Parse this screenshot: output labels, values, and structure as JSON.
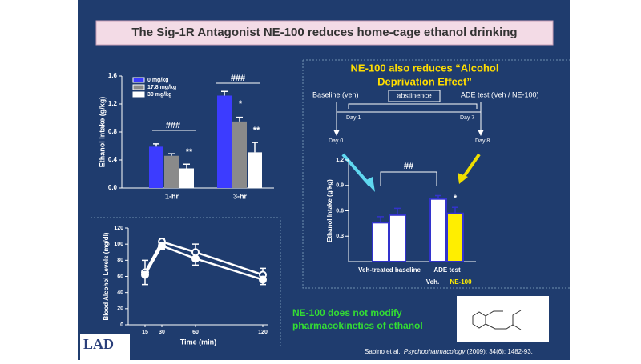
{
  "slide": {
    "title": "The Sig-1R Antagonist NE-100 reduces home-cage ethanol drinking",
    "ade_heading": [
      "NE-100 also reduces “Alcohol",
      "Deprivation Effect”"
    ],
    "timeline": {
      "baseline": "Baseline (veh)",
      "abstinence": "abstinence",
      "ade": "ADE test (Veh / NE-100)",
      "day1": "Day 1",
      "day7": "Day 7",
      "day0": "Day 0",
      "day8": "Day 8"
    },
    "pk_note": [
      "NE-100 does not modify",
      "pharmacokinetics of ethanol"
    ],
    "citation": {
      "authors": "Sabino et al., ",
      "journal": "Psychopharmacology",
      "details": " (2009); 34(6): 1482-93."
    },
    "logo": "LAD"
  },
  "chart_data": [
    {
      "type": "bar",
      "ylabel": "Ethanol Intake (g/kg)",
      "categories": [
        "1-hr",
        "3-hr"
      ],
      "series": [
        {
          "name": "0 mg/kg",
          "color": "#3c3cff",
          "values": [
            0.59,
            1.32
          ],
          "errors": [
            0.04,
            0.06
          ]
        },
        {
          "name": "17.8 mg/kg",
          "color": "#8a8a8a",
          "values": [
            0.46,
            0.95
          ],
          "errors": [
            0.03,
            0.06
          ]
        },
        {
          "name": "30 mg/kg",
          "color": "#ffffff",
          "values": [
            0.28,
            0.51
          ],
          "errors": [
            0.06,
            0.14
          ]
        }
      ],
      "ylim": [
        0,
        1.6
      ],
      "yticks": [
        {
          "value": 0,
          "label": "0.0"
        },
        0.4,
        0.8,
        1.2,
        1.6
      ],
      "annotations": [
        "###",
        "###",
        "**",
        "*",
        "**"
      ]
    },
    {
      "type": "line",
      "ylabel": "Blood Alcohol Levels (mg/dl)",
      "xlabel": "Time (min)",
      "x": [
        15,
        30,
        60,
        120
      ],
      "series": [
        {
          "color": "#ffffff",
          "marker": "open",
          "values": [
            65,
            103,
            90,
            62
          ],
          "errors": [
            15,
            4,
            10,
            8
          ]
        },
        {
          "color": "#ffffff",
          "marker": "filled",
          "values": [
            62,
            98,
            82,
            56
          ],
          "errors": [
            12,
            4,
            8,
            6
          ]
        }
      ],
      "xlim": [
        0,
        125
      ],
      "xticks": [
        15,
        30,
        60,
        120
      ],
      "ylim": [
        0,
        120
      ],
      "yticks": [
        0,
        20,
        40,
        60,
        80,
        100,
        120
      ]
    },
    {
      "type": "bar",
      "ylabel": "Ethanol Intake (g/kg)",
      "categories": [
        "Veh-treated baseline",
        "ADE test"
      ],
      "series": [
        {
          "name": "Veh.",
          "color": "#ffffff",
          "values": [
            0.46,
            0.74
          ],
          "errors": [
            0.07,
            0.04
          ]
        },
        {
          "name": "NE-100",
          "color": "#ffee00",
          "colors": [
            "#ffffff",
            "#ffee00"
          ],
          "values": [
            0.55,
            0.57
          ],
          "errors": [
            0.08,
            0.07
          ]
        }
      ],
      "edge_color": "#3333cc",
      "ylim": [
        0,
        1.2
      ],
      "yticks": [
        0.3,
        0.6,
        0.9,
        1.2
      ],
      "annotations": [
        "##",
        "*"
      ]
    }
  ]
}
